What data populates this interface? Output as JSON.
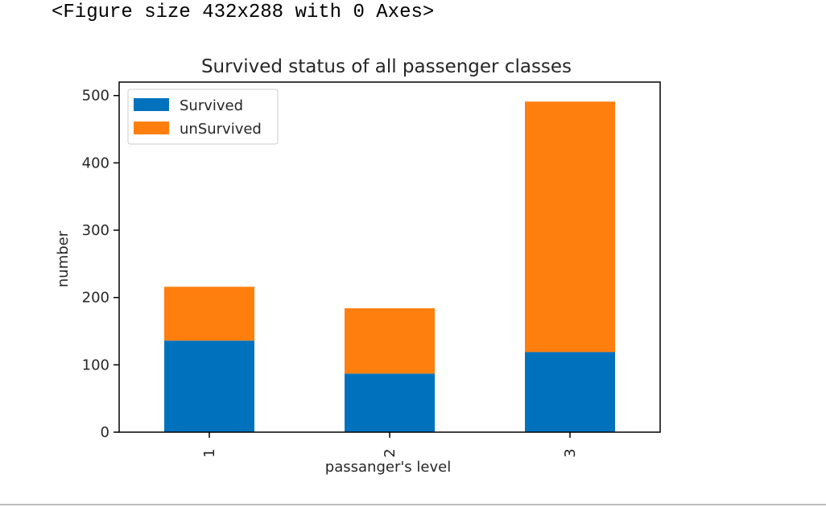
{
  "output_text": "<Figure size 432x288 with 0 Axes>",
  "colors": {
    "survived": "#0072BD",
    "unsurvived": "#FF7F0E",
    "axes": "#000000",
    "text": "#262626"
  },
  "chart_data": {
    "type": "bar",
    "stacked": true,
    "title": "Survived status of all passenger classes",
    "xlabel": "passanger's level",
    "ylabel": "number",
    "categories": [
      "1",
      "2",
      "3"
    ],
    "series": [
      {
        "name": "Survived",
        "values": [
          136,
          87,
          119
        ]
      },
      {
        "name": "unSurvived",
        "values": [
          80,
          97,
          372
        ]
      }
    ],
    "ylim": [
      0,
      520
    ],
    "yticks": [
      0,
      100,
      200,
      300,
      400,
      500
    ],
    "legend_position": "top-left",
    "grid": false
  }
}
